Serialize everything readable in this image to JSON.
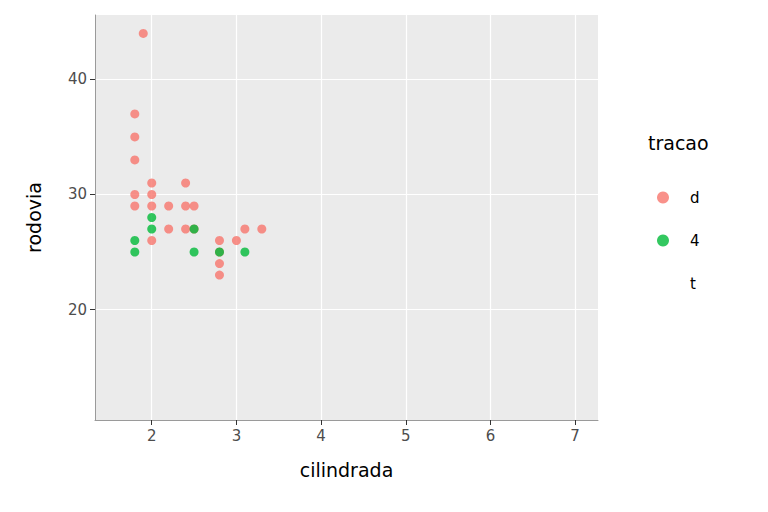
{
  "chart_data": {
    "type": "scatter",
    "x_label": "cilindrada",
    "y_label": "rodovia",
    "legend_title": "tracao",
    "legend": "right",
    "grid": true,
    "marker": "circle",
    "xlim": [
      1.33,
      7.27
    ],
    "xticks": [
      2,
      3,
      4,
      5,
      6,
      7
    ],
    "ylim": [
      10.4,
      45.6
    ],
    "yticks": [
      20,
      30,
      40
    ],
    "series": [
      {
        "name": "d",
        "color": "#F8766D",
        "x": [
          1.9,
          1.8,
          1.8,
          1.8,
          1.8,
          1.8,
          2.0,
          2.0,
          2.0,
          2.0,
          2.2,
          2.2,
          2.4,
          2.4,
          2.4,
          2.5,
          2.5,
          2.8,
          2.8,
          2.8,
          2.8,
          3.0,
          3.1,
          3.3
        ],
        "values": [
          44,
          37,
          35,
          33,
          30,
          29,
          31,
          30,
          29,
          26,
          29,
          27,
          31,
          29,
          27,
          29,
          27,
          26,
          25,
          24,
          23,
          26,
          27,
          27
        ]
      },
      {
        "name": "4",
        "color": "#00BA38",
        "x": [
          1.8,
          1.8,
          2.0,
          2.0,
          2.5,
          2.5,
          2.8,
          3.1
        ],
        "values": [
          26,
          25,
          28,
          27,
          27,
          25,
          25,
          25
        ]
      },
      {
        "name": "t",
        "x": [],
        "values": []
      }
    ]
  }
}
